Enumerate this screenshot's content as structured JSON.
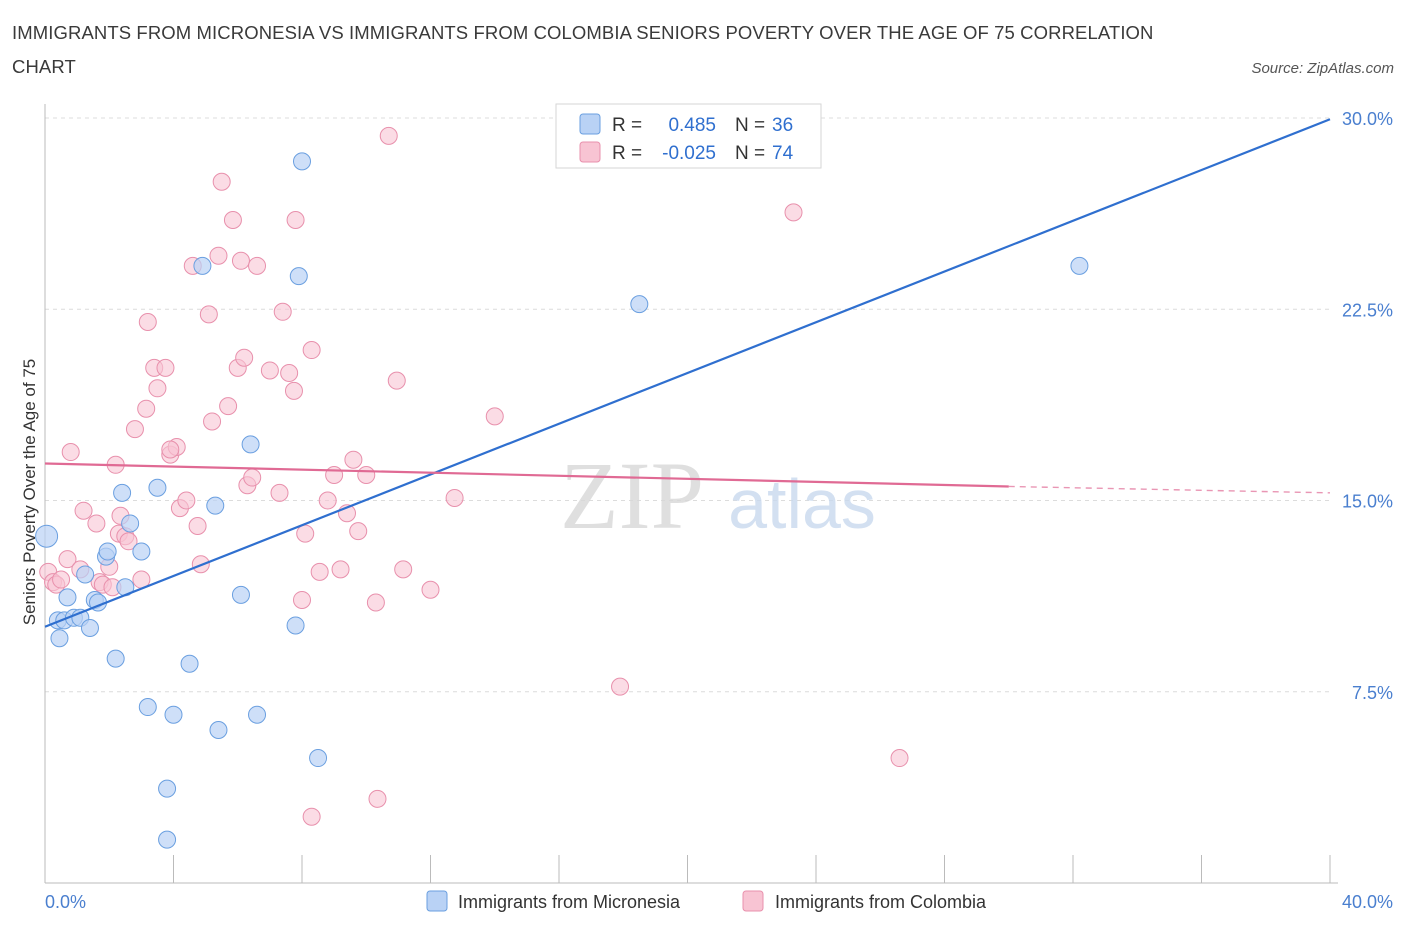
{
  "title": "IMMIGRANTS FROM MICRONESIA VS IMMIGRANTS FROM COLOMBIA SENIORS POVERTY OVER THE AGE OF 75 CORRELATION CHART",
  "source": "Source: ZipAtlas.com",
  "colors": {
    "micronesia_fill": "#b9d2f5",
    "micronesia_stroke": "#6a9fe0",
    "micronesia_line": "#2f6fcf",
    "colombia_fill": "#f8c4d3",
    "colombia_stroke": "#e890ac",
    "colombia_line": "#e06a94",
    "tick_text": "#4a7fcf",
    "grid": "#dcdcdc"
  },
  "legend": {
    "r_label": "R =",
    "n_label": "N =",
    "micronesia": {
      "r": "0.485",
      "n": "36"
    },
    "colombia": {
      "r": "-0.025",
      "n": "74"
    }
  },
  "watermark": {
    "zip": "ZIP",
    "atlas": "atlas"
  },
  "chart_data": {
    "type": "scatter",
    "title": "IMMIGRANTS FROM MICRONESIA VS IMMIGRANTS FROM COLOMBIA SENIORS POVERTY OVER THE AGE OF 75 CORRELATION CHART",
    "xlabel": "",
    "ylabel": "Seniors Poverty Over the Age of 75",
    "xlim": [
      0,
      40
    ],
    "ylim": [
      0,
      30
    ],
    "x_ticks": [
      "0.0%",
      "40.0%"
    ],
    "y_ticks": [
      {
        "value": 7.5,
        "label": "7.5%"
      },
      {
        "value": 15.0,
        "label": "15.0%"
      },
      {
        "value": 22.5,
        "label": "22.5%"
      },
      {
        "value": 30.0,
        "label": "30.0%"
      }
    ],
    "grid": true,
    "legend_position": "top-center",
    "series": [
      {
        "name": "Immigrants from Micronesia",
        "points": [
          [
            0.05,
            13.6
          ],
          [
            0.4,
            10.3
          ],
          [
            0.45,
            9.6
          ],
          [
            0.6,
            10.3
          ],
          [
            0.7,
            11.2
          ],
          [
            0.9,
            10.4
          ],
          [
            1.1,
            10.4
          ],
          [
            1.25,
            12.1
          ],
          [
            1.4,
            10.0
          ],
          [
            1.55,
            11.1
          ],
          [
            1.65,
            11.0
          ],
          [
            1.9,
            12.8
          ],
          [
            1.95,
            13.0
          ],
          [
            2.2,
            8.8
          ],
          [
            2.4,
            15.3
          ],
          [
            2.5,
            11.6
          ],
          [
            2.65,
            14.1
          ],
          [
            3.0,
            13.0
          ],
          [
            3.2,
            6.9
          ],
          [
            3.5,
            15.5
          ],
          [
            3.8,
            3.7
          ],
          [
            3.8,
            1.7
          ],
          [
            4.0,
            6.6
          ],
          [
            4.5,
            8.6
          ],
          [
            4.9,
            24.2
          ],
          [
            5.3,
            14.8
          ],
          [
            5.4,
            6.0
          ],
          [
            6.1,
            11.3
          ],
          [
            6.6,
            6.6
          ],
          [
            6.4,
            17.2
          ],
          [
            7.8,
            10.1
          ],
          [
            7.9,
            23.8
          ],
          [
            8.0,
            28.3
          ],
          [
            8.5,
            4.9
          ],
          [
            18.5,
            22.7
          ],
          [
            32.2,
            24.2
          ]
        ]
      },
      {
        "name": "Immigrants from Colombia",
        "points": [
          [
            0.1,
            12.2
          ],
          [
            0.25,
            11.8
          ],
          [
            0.35,
            11.7
          ],
          [
            0.5,
            11.9
          ],
          [
            0.7,
            12.7
          ],
          [
            0.8,
            16.9
          ],
          [
            1.1,
            12.3
          ],
          [
            1.2,
            14.6
          ],
          [
            1.6,
            14.1
          ],
          [
            1.7,
            11.8
          ],
          [
            1.8,
            11.7
          ],
          [
            2.0,
            12.4
          ],
          [
            2.1,
            11.6
          ],
          [
            2.2,
            16.4
          ],
          [
            2.3,
            13.7
          ],
          [
            2.35,
            14.4
          ],
          [
            2.5,
            13.6
          ],
          [
            2.6,
            13.4
          ],
          [
            2.8,
            17.8
          ],
          [
            3.0,
            11.9
          ],
          [
            3.15,
            18.6
          ],
          [
            3.2,
            22.0
          ],
          [
            3.4,
            20.2
          ],
          [
            3.5,
            19.4
          ],
          [
            3.75,
            20.2
          ],
          [
            3.9,
            16.8
          ],
          [
            4.1,
            17.1
          ],
          [
            4.2,
            14.7
          ],
          [
            4.4,
            15.0
          ],
          [
            4.6,
            24.2
          ],
          [
            4.75,
            14.0
          ],
          [
            4.85,
            12.5
          ],
          [
            5.1,
            22.3
          ],
          [
            5.2,
            18.1
          ],
          [
            5.4,
            24.6
          ],
          [
            5.5,
            27.5
          ],
          [
            5.7,
            18.7
          ],
          [
            5.85,
            26.0
          ],
          [
            6.0,
            20.2
          ],
          [
            6.1,
            24.4
          ],
          [
            6.2,
            20.6
          ],
          [
            6.3,
            15.6
          ],
          [
            6.45,
            15.9
          ],
          [
            6.6,
            24.2
          ],
          [
            7.0,
            20.1
          ],
          [
            7.3,
            15.3
          ],
          [
            7.6,
            20.0
          ],
          [
            7.75,
            19.3
          ],
          [
            7.4,
            22.4
          ],
          [
            7.8,
            26.0
          ],
          [
            8.0,
            11.1
          ],
          [
            8.1,
            13.7
          ],
          [
            8.3,
            20.9
          ],
          [
            8.55,
            12.2
          ],
          [
            8.8,
            15.0
          ],
          [
            9.0,
            16.0
          ],
          [
            9.2,
            12.3
          ],
          [
            9.4,
            14.5
          ],
          [
            9.6,
            16.6
          ],
          [
            9.75,
            13.8
          ],
          [
            10.0,
            16.0
          ],
          [
            10.3,
            11.0
          ],
          [
            10.35,
            3.3
          ],
          [
            10.7,
            29.3
          ],
          [
            10.95,
            19.7
          ],
          [
            11.15,
            12.3
          ],
          [
            12.0,
            11.5
          ],
          [
            12.75,
            15.1
          ],
          [
            14.0,
            18.3
          ],
          [
            8.3,
            2.6
          ],
          [
            17.9,
            7.7
          ],
          [
            23.3,
            26.3
          ],
          [
            26.6,
            4.9
          ],
          [
            3.9,
            17.0
          ]
        ]
      }
    ],
    "trend_lines": [
      {
        "series": "Immigrants from Micronesia",
        "x": [
          0.0,
          40.0
        ],
        "y": [
          10.05,
          29.95
        ],
        "style": "solid"
      },
      {
        "series": "Immigrants from Colombia",
        "x": [
          0.0,
          30.0
        ],
        "y": [
          16.45,
          15.55
        ],
        "style": "solid"
      },
      {
        "series": "Immigrants from Colombia",
        "x": [
          30.0,
          40.0
        ],
        "y": [
          15.55,
          15.3
        ],
        "style": "dashed"
      }
    ]
  }
}
